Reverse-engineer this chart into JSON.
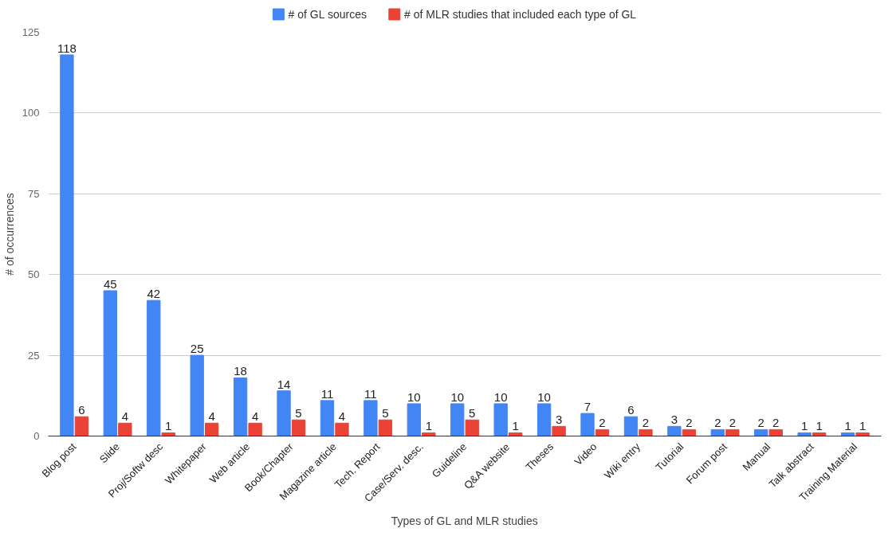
{
  "chart_data": {
    "type": "bar",
    "xlabel": "Types of GL and MLR studies",
    "ylabel": "# of occurrences",
    "categories": [
      "Blog post",
      "Slide",
      "Proj/Softw desc",
      "Whitepaper",
      "Web article",
      "Book/Chapter",
      "Magazine article",
      "Tech. Report",
      "Case/Serv. desc.",
      "Guideline",
      "Q&A website",
      "Theses",
      "Video",
      "Wiki entry",
      "Tutorial",
      "Forum post",
      "Manual",
      "Talk abstract",
      "Training Material"
    ],
    "series": [
      {
        "name": "# of GL sources",
        "color": "#4285f4",
        "values": [
          118,
          45,
          42,
          25,
          18,
          14,
          11,
          11,
          10,
          10,
          10,
          10,
          7,
          6,
          3,
          2,
          2,
          1,
          1
        ]
      },
      {
        "name": "# of MLR studies that included each type of GL",
        "color": "#ea4335",
        "values": [
          6,
          4,
          1,
          4,
          4,
          5,
          4,
          5,
          1,
          5,
          1,
          3,
          2,
          2,
          2,
          2,
          2,
          1,
          1
        ]
      }
    ],
    "ylim": [
      0,
      125
    ],
    "yticks": [
      0,
      25,
      50,
      75,
      100,
      125
    ],
    "grid": "y",
    "legend": "top",
    "data_labels": true
  }
}
